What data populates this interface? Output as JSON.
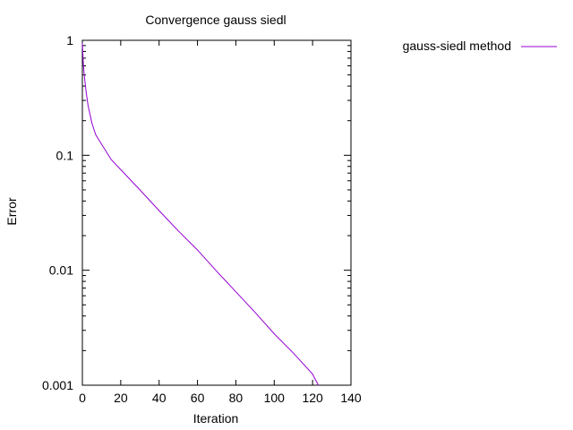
{
  "chart_data": {
    "type": "line",
    "title": "Convergence gauss siedl",
    "xlabel": "Iteration",
    "ylabel": "Error",
    "xlim": [
      0,
      140
    ],
    "ylim": [
      0.001,
      1
    ],
    "yscale": "log",
    "grid": false,
    "legend_position": "outside-right-top",
    "x_ticks": [
      {
        "value": 0,
        "label": "0"
      },
      {
        "value": 20,
        "label": "20"
      },
      {
        "value": 40,
        "label": "40"
      },
      {
        "value": 60,
        "label": "60"
      },
      {
        "value": 80,
        "label": "80"
      },
      {
        "value": 100,
        "label": "100"
      },
      {
        "value": 120,
        "label": "120"
      },
      {
        "value": 140,
        "label": "140"
      }
    ],
    "y_ticks": [
      {
        "value": 1,
        "label": "1"
      },
      {
        "value": 0.1,
        "label": "0.1"
      },
      {
        "value": 0.01,
        "label": "0.01"
      },
      {
        "value": 0.001,
        "label": "0.001"
      }
    ],
    "series": [
      {
        "name": "gauss-siedl method",
        "color": "#9400d3",
        "x": [
          0,
          0.5,
          1,
          2,
          3,
          5,
          7,
          10,
          15,
          20,
          30,
          40,
          50,
          60,
          70,
          80,
          90,
          100,
          110,
          120,
          123
        ],
        "y": [
          0.95,
          0.62,
          0.5,
          0.35,
          0.27,
          0.19,
          0.15,
          0.125,
          0.092,
          0.075,
          0.05,
          0.033,
          0.022,
          0.015,
          0.0098,
          0.0065,
          0.0043,
          0.0028,
          0.0019,
          0.00125,
          0.001
        ]
      }
    ]
  }
}
